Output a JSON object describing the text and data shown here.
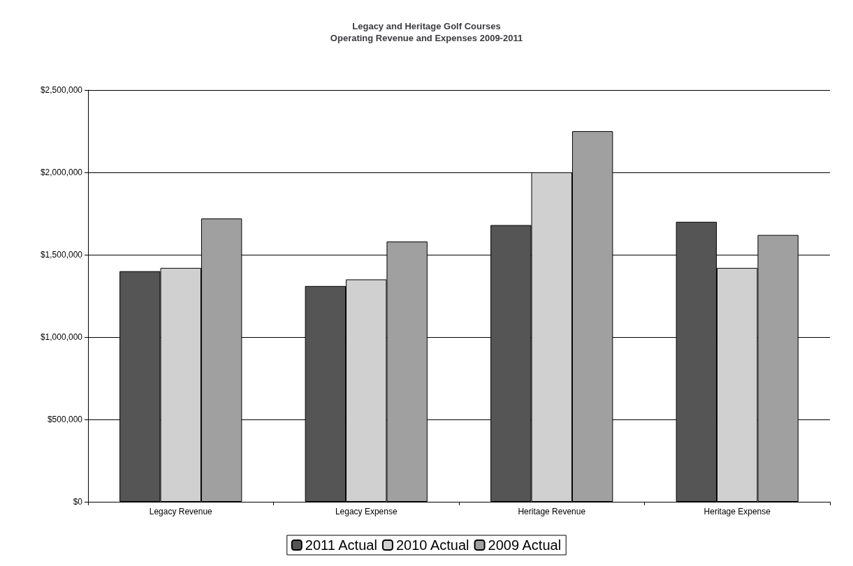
{
  "chart_data": {
    "type": "bar",
    "title": "Legacy and Heritage Golf Courses\nOperating Revenue and Expenses 2009-2011",
    "categories": [
      "Legacy Revenue",
      "Legacy Expense",
      "Heritage Revenue",
      "Heritage Expense"
    ],
    "series": [
      {
        "name": "2011 Actual",
        "color": "#555555",
        "values": [
          1400000,
          1310000,
          1680000,
          1700000
        ]
      },
      {
        "name": "2010 Actual",
        "color": "#d0d0d0",
        "values": [
          1420000,
          1350000,
          2000000,
          1420000
        ]
      },
      {
        "name": "2009 Actual",
        "color": "#a0a0a0",
        "values": [
          1720000,
          1580000,
          2250000,
          1620000
        ]
      }
    ],
    "ylim": [
      0,
      2500000
    ],
    "yticks": [
      {
        "value": 0,
        "label": "$0"
      },
      {
        "value": 500000,
        "label": "$500,000"
      },
      {
        "value": 1000000,
        "label": "$1,000,000"
      },
      {
        "value": 1500000,
        "label": "$1,500,000"
      },
      {
        "value": 2000000,
        "label": "$2,000,000"
      },
      {
        "value": 2500000,
        "label": "$2,500,000"
      }
    ],
    "grid": "y",
    "legend": "bottom"
  }
}
